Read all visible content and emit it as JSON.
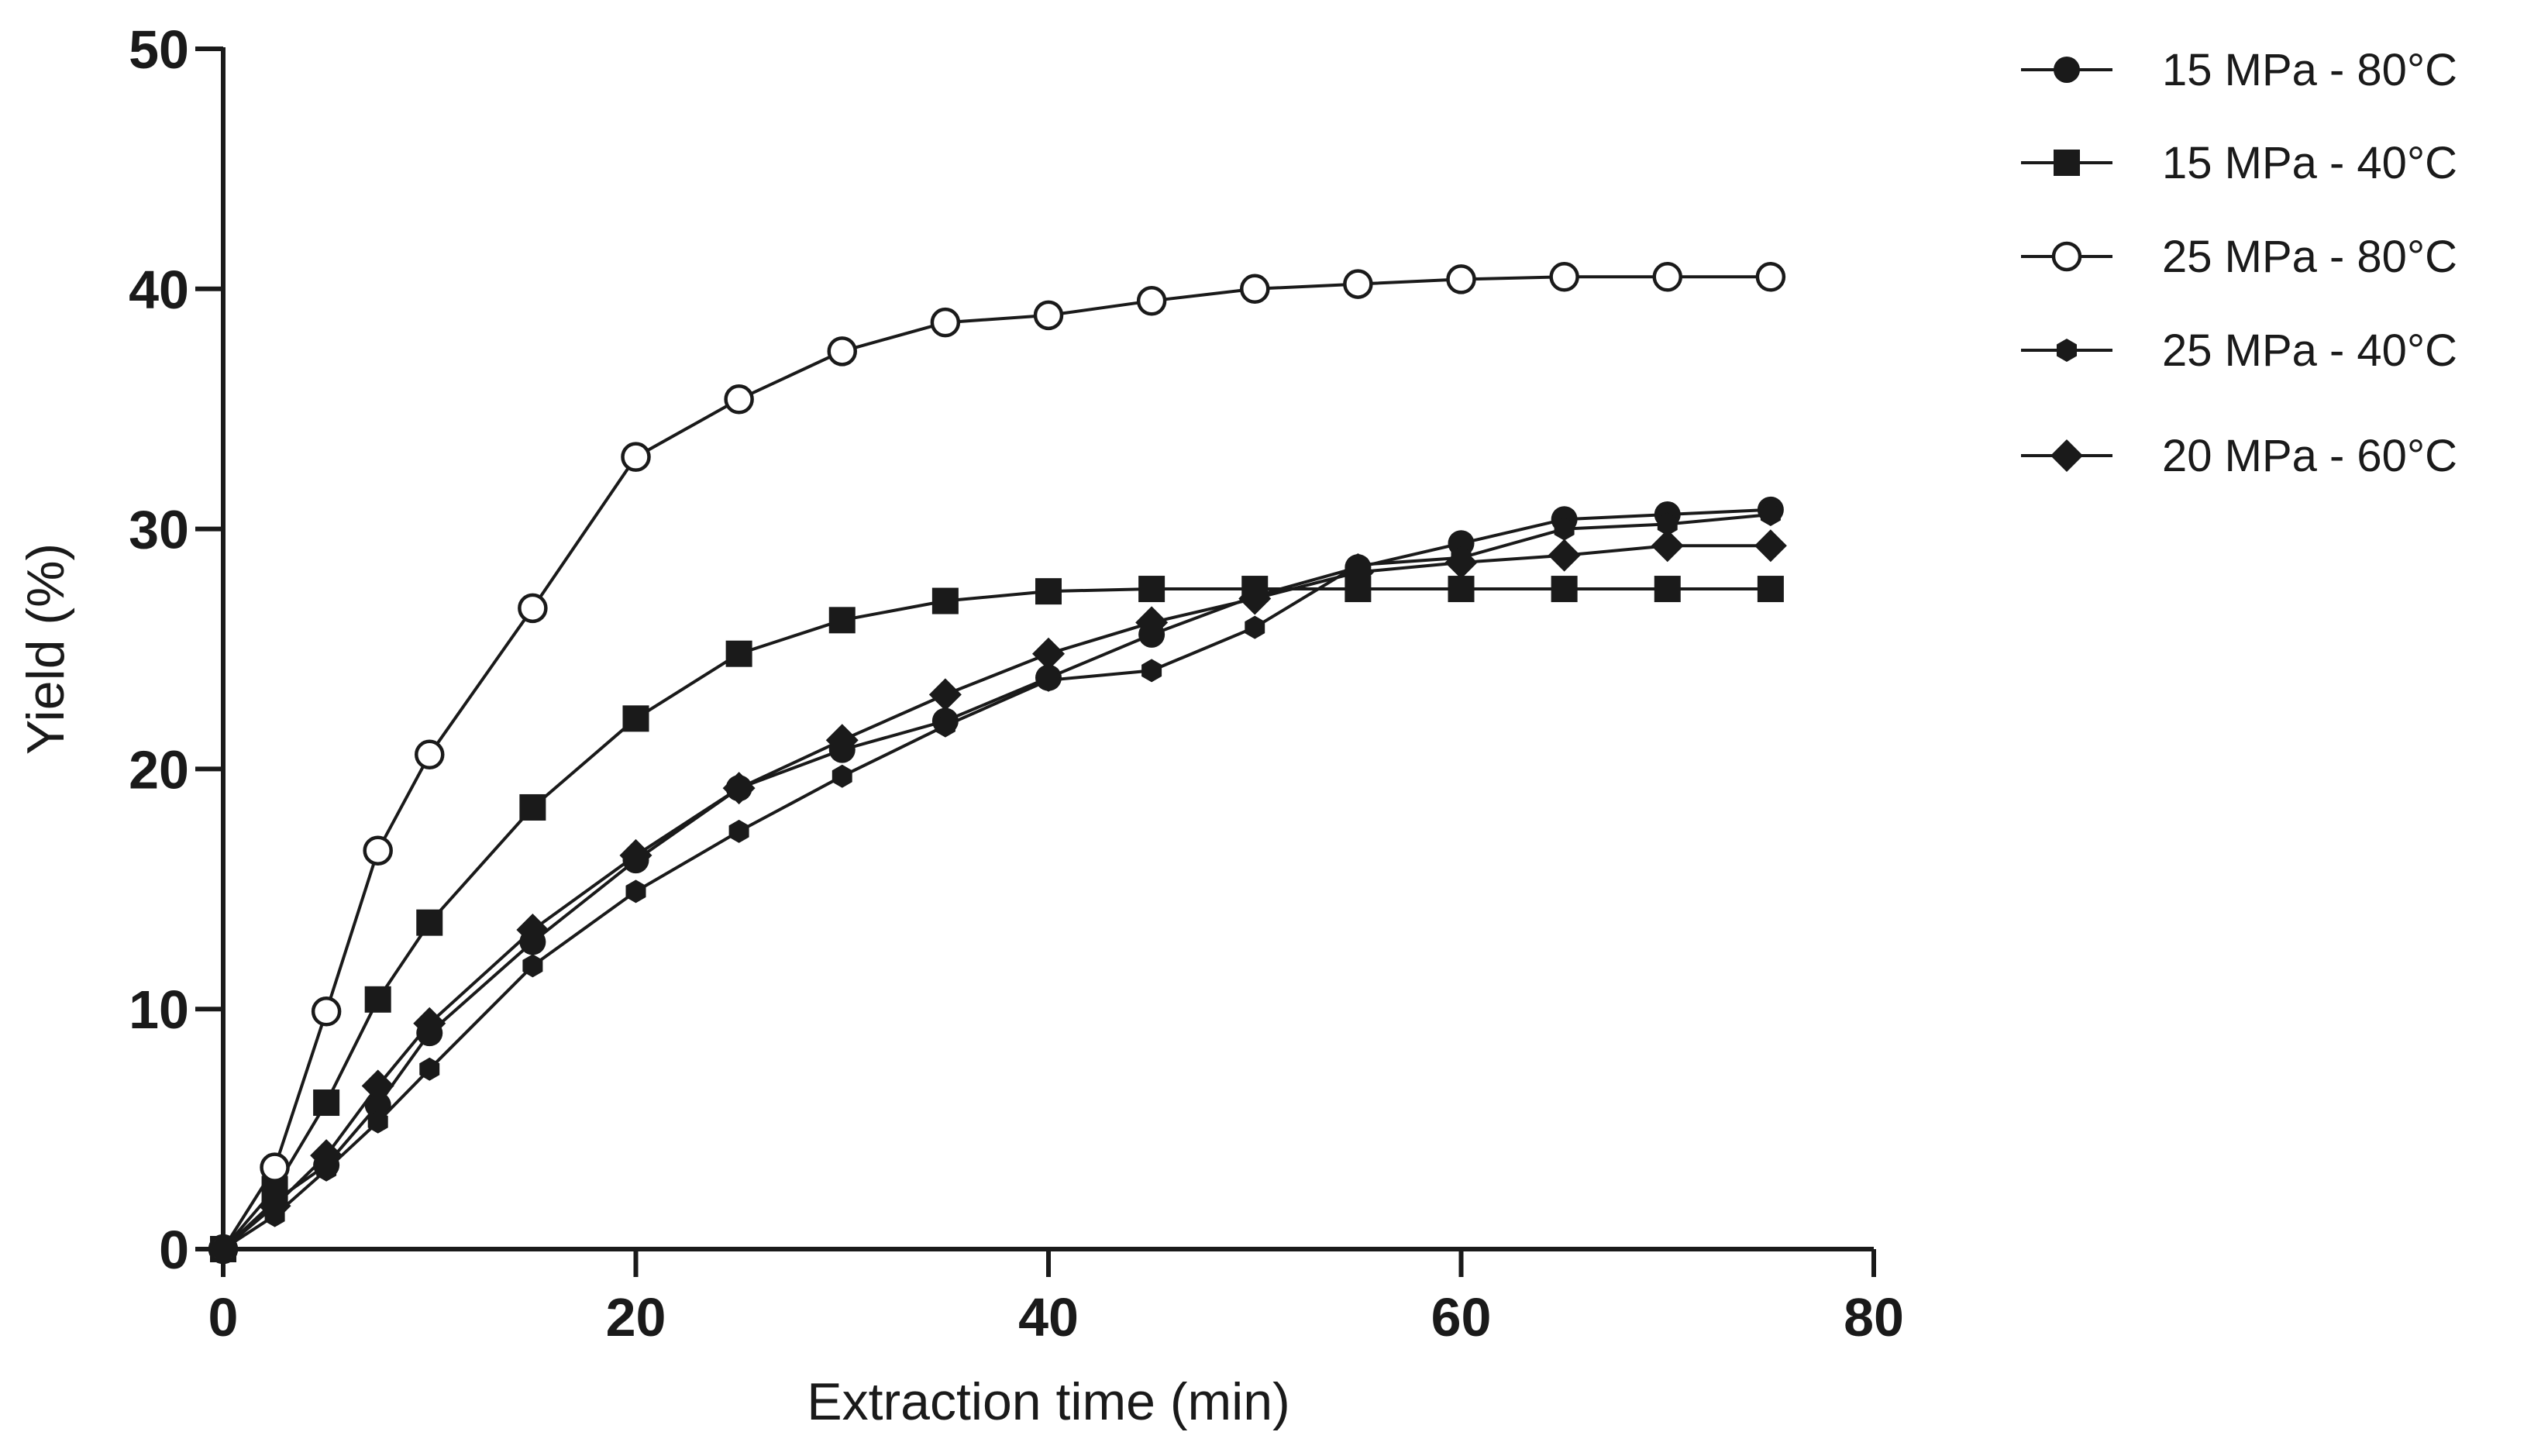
{
  "chart_data": {
    "type": "line",
    "title": "",
    "xlabel": "Extraction time (min)",
    "ylabel": "Yield (%)",
    "xlim": [
      0,
      80
    ],
    "ylim": [
      0,
      50
    ],
    "xticks": [
      0,
      20,
      40,
      60,
      80
    ],
    "yticks": [
      0,
      10,
      20,
      30,
      40,
      50
    ],
    "grid": false,
    "legend_position": "top-right",
    "series": [
      {
        "name": "15 MPa - 80°C",
        "marker": "circle-filled",
        "x": [
          0,
          2.5,
          5,
          7.5,
          10,
          15,
          20,
          25,
          30,
          35,
          40,
          45,
          50,
          55,
          60,
          65,
          70,
          75
        ],
        "y": [
          0,
          2.0,
          3.5,
          6.0,
          9.0,
          12.8,
          16.2,
          19.2,
          20.8,
          22.0,
          23.8,
          25.6,
          27.2,
          28.4,
          29.4,
          30.4,
          30.6,
          30.8
        ]
      },
      {
        "name": "15 MPa - 40°C",
        "marker": "square-filled",
        "x": [
          0,
          2.5,
          5,
          7.5,
          10,
          15,
          20,
          25,
          30,
          35,
          40,
          45,
          50,
          55,
          60,
          65,
          70,
          75
        ],
        "y": [
          0,
          2.5,
          6.1,
          10.4,
          13.6,
          18.4,
          22.1,
          24.8,
          26.2,
          27.0,
          27.4,
          27.5,
          27.5,
          27.5,
          27.5,
          27.5,
          27.5,
          27.5
        ]
      },
      {
        "name": "25 MPa - 80°C",
        "marker": "circle-open",
        "x": [
          0,
          2.5,
          5,
          7.5,
          10,
          15,
          20,
          25,
          30,
          35,
          40,
          45,
          50,
          55,
          60,
          65,
          70,
          75
        ],
        "y": [
          0,
          3.4,
          9.9,
          16.6,
          20.6,
          26.7,
          33.0,
          35.4,
          37.4,
          38.6,
          38.9,
          39.5,
          40.0,
          40.2,
          40.4,
          40.5,
          40.5,
          40.5
        ]
      },
      {
        "name": "25 MPa - 40°C",
        "marker": "hexagon-filled",
        "x": [
          0,
          2.5,
          5,
          7.5,
          10,
          15,
          20,
          25,
          30,
          35,
          40,
          45,
          50,
          55,
          60,
          65,
          70,
          75
        ],
        "y": [
          0,
          1.4,
          3.3,
          5.3,
          7.5,
          11.8,
          14.9,
          17.4,
          19.7,
          21.8,
          23.7,
          24.1,
          25.9,
          28.5,
          28.8,
          30.0,
          30.2,
          30.6
        ]
      },
      {
        "name": "20 MPa - 60°C",
        "marker": "diamond-filled",
        "x": [
          0,
          2.5,
          5,
          7.5,
          10,
          15,
          20,
          25,
          30,
          35,
          40,
          45,
          50,
          55,
          60,
          65,
          70,
          75
        ],
        "y": [
          0,
          1.8,
          3.9,
          6.8,
          9.4,
          13.3,
          16.4,
          19.2,
          21.2,
          23.1,
          24.8,
          26.1,
          27.1,
          28.2,
          28.6,
          28.9,
          29.3,
          29.3
        ]
      }
    ]
  }
}
